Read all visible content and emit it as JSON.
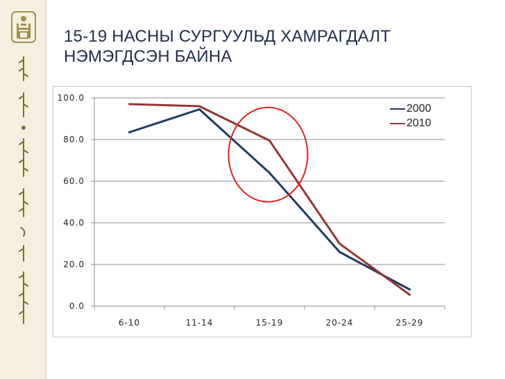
{
  "slide": {
    "title_lines": [
      "15-19 НАСНЫ СУРГУУЛЬД ХАМРАГДАЛТ",
      "НЭМЭГДСЭН БАЙНА"
    ]
  },
  "colors": {
    "sidebar_bg": "#f4efde",
    "emblem": "#a08f55",
    "series_2000": "#1f3a5f",
    "series_2010": "#943634",
    "highlight_circle": "#e02020"
  },
  "icons": {
    "emblem": "soyombo-emblem-icon",
    "script": "mongolian-script-ornament"
  },
  "chart_data": {
    "type": "line",
    "categories": [
      "6-10",
      "11-14",
      "15-19",
      "20-24",
      "25-29"
    ],
    "y_tick_labels": [
      "0.0",
      "20.0",
      "40.0",
      "60.0",
      "80.0",
      "100.0"
    ],
    "ylim": [
      0,
      100
    ],
    "grid": true,
    "legend_position": "top-right",
    "series": [
      {
        "name": "2000",
        "values": [
          83.5,
          94.5,
          64.0,
          26.0,
          8.0
        ]
      },
      {
        "name": "2010",
        "values": [
          97.0,
          96.0,
          79.5,
          30.0,
          5.5
        ]
      }
    ],
    "annotation": {
      "type": "circle",
      "category": "15-19"
    }
  }
}
